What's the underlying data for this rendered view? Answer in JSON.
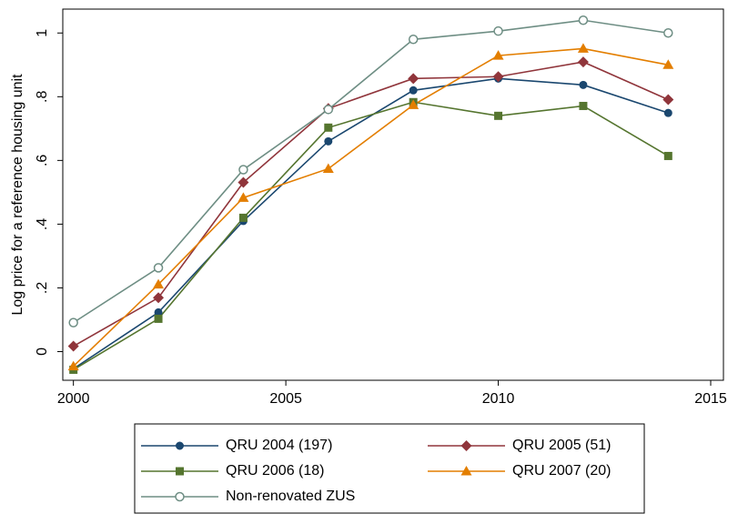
{
  "chart_data": {
    "type": "line",
    "y_label": "Log price for a reference housing unit",
    "x": [
      2000,
      2002,
      2004,
      2006,
      2008,
      2010,
      2012,
      2014
    ],
    "series": [
      {
        "name": "QRU 2004 (197)",
        "color": "#1a476f",
        "marker": "circle",
        "values": [
          -0.054,
          0.123,
          0.41,
          0.66,
          0.82,
          0.857,
          0.837,
          0.749
        ]
      },
      {
        "name": "QRU 2005 (51)",
        "color": "#90353b",
        "marker": "diamond",
        "values": [
          0.017,
          0.169,
          0.531,
          0.763,
          0.857,
          0.863,
          0.909,
          0.791
        ]
      },
      {
        "name": "QRU 2006 (18)",
        "color": "#55752f",
        "marker": "square",
        "values": [
          -0.057,
          0.103,
          0.42,
          0.703,
          0.783,
          0.74,
          0.771,
          0.614
        ]
      },
      {
        "name": "QRU 2007 (20)",
        "color": "#e37e00",
        "marker": "triangle",
        "values": [
          -0.046,
          0.211,
          0.483,
          0.574,
          0.774,
          0.929,
          0.951,
          0.9
        ]
      },
      {
        "name": "Non-renovated ZUS",
        "color": "#6e8e84",
        "marker": "hollow-circle",
        "values": [
          0.091,
          0.263,
          0.571,
          0.76,
          0.98,
          1.006,
          1.04,
          1.0
        ]
      }
    ],
    "xlim": [
      1999.75,
      2015.3
    ],
    "xticks": [
      2000,
      2005,
      2010,
      2015
    ],
    "ylim": [
      -0.09,
      1.075
    ],
    "yticks": [
      0,
      {
        "value": 0.2,
        "label": ".2"
      },
      {
        "value": 0.4,
        "label": ".4"
      },
      {
        "value": 0.6,
        "label": ".6"
      },
      {
        "value": 0.8,
        "label": ".8"
      },
      1
    ],
    "grid": false,
    "legend": "bottom"
  }
}
